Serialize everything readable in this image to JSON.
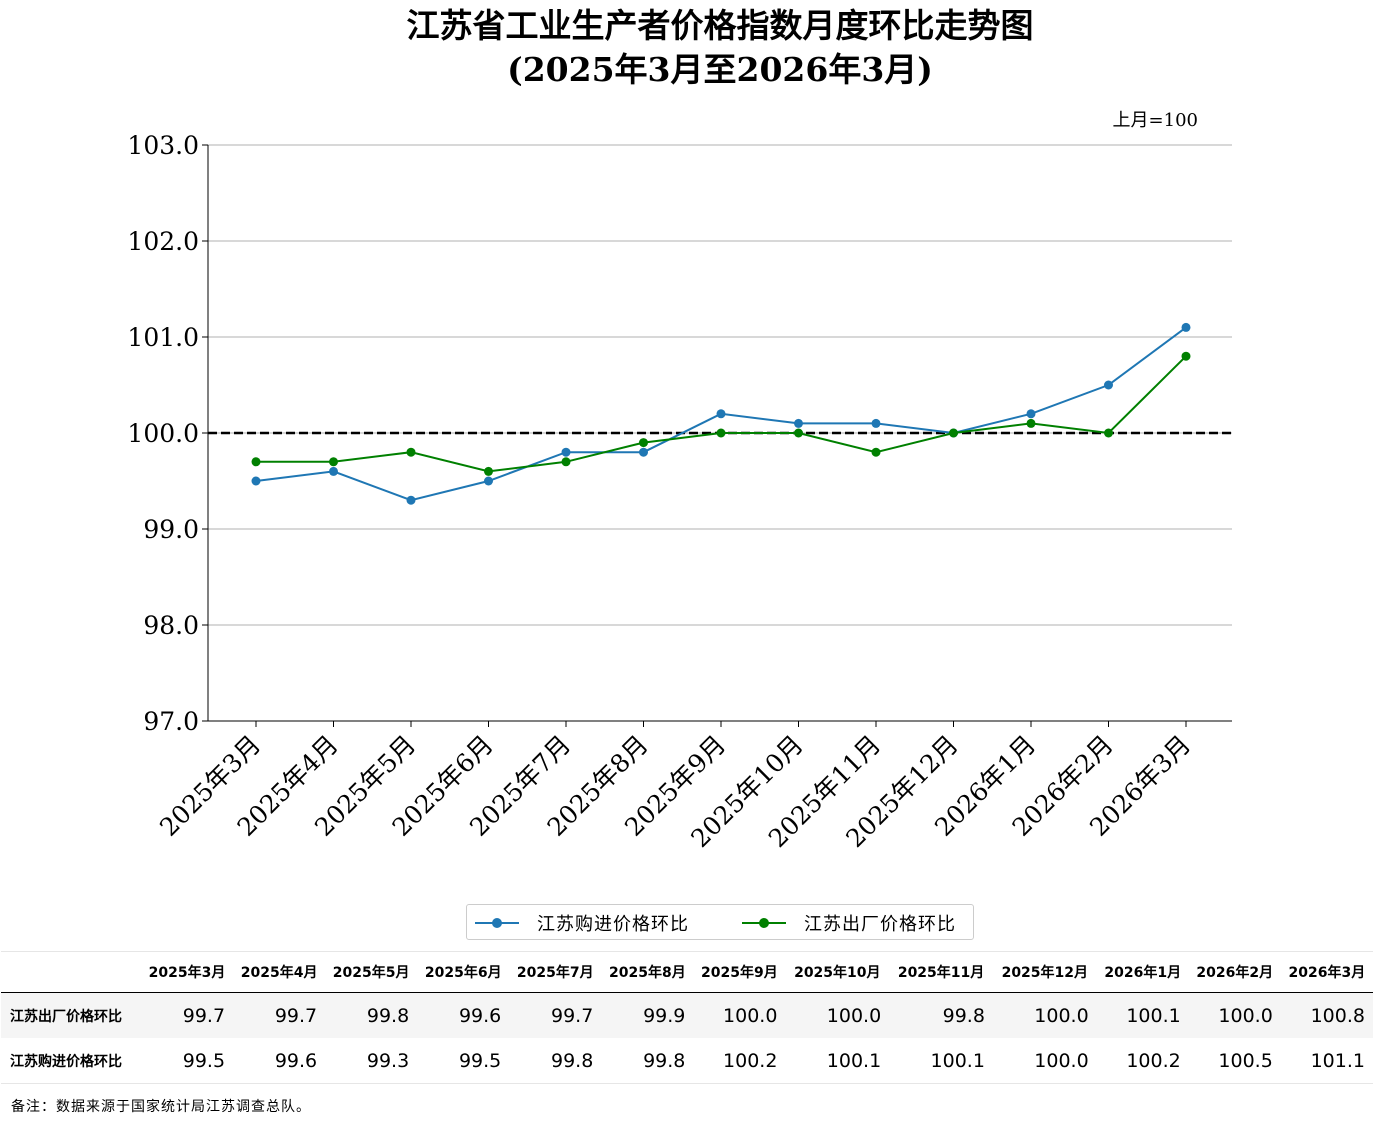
{
  "title_line1": "江苏省工业生产者价格指数月度环比走势图",
  "title_line2": "(2025年3月至2026年3月)",
  "unit_note": "上月=100",
  "chart_data": {
    "type": "line",
    "categories": [
      "2025年3月",
      "2025年4月",
      "2025年5月",
      "2025年6月",
      "2025年7月",
      "2025年8月",
      "2025年9月",
      "2025年10月",
      "2025年11月",
      "2025年12月",
      "2026年1月",
      "2026年2月",
      "2026年3月"
    ],
    "series": [
      {
        "name": "江苏购进价格环比",
        "color": "#1f77b4",
        "values": [
          99.5,
          99.6,
          99.3,
          99.5,
          99.8,
          99.8,
          100.2,
          100.1,
          100.1,
          100.0,
          100.2,
          100.5,
          101.1
        ]
      },
      {
        "name": "江苏出厂价格环比",
        "color": "#008000",
        "values": [
          99.7,
          99.7,
          99.8,
          99.6,
          99.7,
          99.9,
          100.0,
          100.0,
          99.8,
          100.0,
          100.1,
          100.0,
          100.8
        ]
      }
    ],
    "yticks": [
      "97.0",
      "98.0",
      "99.0",
      "100.0",
      "101.0",
      "102.0",
      "103.0"
    ],
    "ylim": [
      97.0,
      103.0
    ],
    "reference_line": 100.0,
    "grid": "horizontal",
    "legend_position": "bottom-center"
  },
  "table": {
    "headers": [
      "2025年3月",
      "2025年4月",
      "2025年5月",
      "2025年6月",
      "2025年7月",
      "2025年8月",
      "2025年9月",
      "2025年10月",
      "2025年11月",
      "2025年12月",
      "2026年1月",
      "2026年2月",
      "2026年3月"
    ],
    "rows": [
      {
        "label": "江苏出厂价格环比",
        "values": [
          "99.7",
          "99.7",
          "99.8",
          "99.6",
          "99.7",
          "99.9",
          "100.0",
          "100.0",
          "99.8",
          "100.0",
          "100.1",
          "100.0",
          "100.8"
        ]
      },
      {
        "label": "江苏购进价格环比",
        "values": [
          "99.5",
          "99.6",
          "99.3",
          "99.5",
          "99.8",
          "99.8",
          "100.2",
          "100.1",
          "100.1",
          "100.0",
          "100.2",
          "100.5",
          "101.1"
        ]
      }
    ]
  },
  "footnote": "备注：数据来源于国家统计局江苏调查总队。"
}
